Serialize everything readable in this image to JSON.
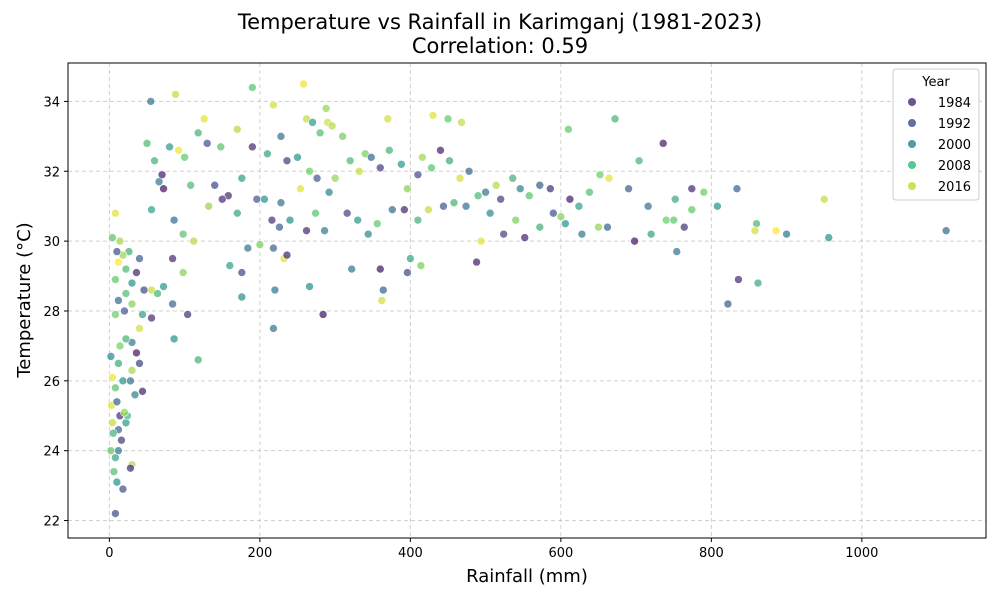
{
  "chart_data": {
    "type": "scatter",
    "title": "Temperature vs Rainfall in Karimganj (1981-2023)",
    "subtitle": "Correlation: 0.59",
    "xlabel": "Rainfall (mm)",
    "ylabel": "Temperature (°C)",
    "xlim": [
      -55,
      1165
    ],
    "ylim": [
      21.5,
      35.1
    ],
    "xticks": [
      0,
      200,
      400,
      600,
      800,
      1000
    ],
    "yticks": [
      22,
      24,
      26,
      28,
      30,
      32,
      34
    ],
    "grid": true,
    "legend": {
      "title": "Year",
      "placement": "top-right",
      "entries": [
        {
          "label": "1984",
          "color": "#482878"
        },
        {
          "label": "1992",
          "color": "#3e4a89"
        },
        {
          "label": "2000",
          "color": "#26828e"
        },
        {
          "label": "2008",
          "color": "#35b779"
        },
        {
          "label": "2016",
          "color": "#b5de2b"
        }
      ]
    },
    "colormap": [
      "#440154",
      "#3b528b",
      "#21918c",
      "#5ec962",
      "#fde725"
    ],
    "year_range": [
      1981,
      2023
    ],
    "points": [
      [
        8,
        22.2,
        1990
      ],
      [
        18,
        22.9,
        1991
      ],
      [
        10,
        23.1,
        2001
      ],
      [
        6,
        23.4,
        2010
      ],
      [
        30,
        23.6,
        2018
      ],
      [
        28,
        23.5,
        1986
      ],
      [
        8,
        23.8,
        2005
      ],
      [
        12,
        24.0,
        1997
      ],
      [
        2,
        24.0,
        2012
      ],
      [
        16,
        24.3,
        1988
      ],
      [
        12,
        24.6,
        1994
      ],
      [
        5,
        24.5,
        2007
      ],
      [
        22,
        24.8,
        2003
      ],
      [
        4,
        24.8,
        2019
      ],
      [
        14,
        25.0,
        1987
      ],
      [
        24,
        25.0,
        2009
      ],
      [
        20,
        25.1,
        2016
      ],
      [
        3,
        25.3,
        2021
      ],
      [
        10,
        25.4,
        1993
      ],
      [
        34,
        25.6,
        1999
      ],
      [
        44,
        25.7,
        1985
      ],
      [
        8,
        25.8,
        2011
      ],
      [
        18,
        26.0,
        2002
      ],
      [
        28,
        26.0,
        1996
      ],
      [
        4,
        26.1,
        2022
      ],
      [
        30,
        26.3,
        2017
      ],
      [
        40,
        26.5,
        1989
      ],
      [
        12,
        26.5,
        2006
      ],
      [
        2,
        26.7,
        2000
      ],
      [
        36,
        26.8,
        1983
      ],
      [
        14,
        27.0,
        2014
      ],
      [
        30,
        27.1,
        1998
      ],
      [
        22,
        27.2,
        2008
      ],
      [
        40,
        27.5,
        2020
      ],
      [
        8,
        27.9,
        2013
      ],
      [
        56,
        27.8,
        1986
      ],
      [
        20,
        28.0,
        1992
      ],
      [
        44,
        27.9,
        2004
      ],
      [
        30,
        28.2,
        2015
      ],
      [
        12,
        28.3,
        1995
      ],
      [
        22,
        28.5,
        2010
      ],
      [
        56,
        28.6,
        2019
      ],
      [
        46,
        28.6,
        1990
      ],
      [
        30,
        28.8,
        2002
      ],
      [
        8,
        28.9,
        2012
      ],
      [
        36,
        29.1,
        1985
      ],
      [
        22,
        29.2,
        2009
      ],
      [
        12,
        29.4,
        2023
      ],
      [
        40,
        29.5,
        1993
      ],
      [
        26,
        29.7,
        2007
      ],
      [
        18,
        29.6,
        2016
      ],
      [
        10,
        29.7,
        1991
      ],
      [
        14,
        30.0,
        2017
      ],
      [
        4,
        30.1,
        2011
      ],
      [
        8,
        30.8,
        2021
      ],
      [
        88,
        34.2,
        2019
      ],
      [
        55,
        34.0,
        1996
      ],
      [
        190,
        34.4,
        2011
      ],
      [
        258,
        34.5,
        2022
      ],
      [
        218,
        33.9,
        2020
      ],
      [
        126,
        33.5,
        2021
      ],
      [
        170,
        33.2,
        2018
      ],
      [
        118,
        33.1,
        2008
      ],
      [
        262,
        33.5,
        2019
      ],
      [
        288,
        33.8,
        2016
      ],
      [
        290,
        33.4,
        2020
      ],
      [
        296,
        33.3,
        2018
      ],
      [
        310,
        33.0,
        2014
      ],
      [
        370,
        33.5,
        2020
      ],
      [
        430,
        33.6,
        2021
      ],
      [
        450,
        33.5,
        2012
      ],
      [
        468,
        33.4,
        2019
      ],
      [
        610,
        33.2,
        2012
      ],
      [
        672,
        33.5,
        2008
      ],
      [
        228,
        33.0,
        1996
      ],
      [
        270,
        33.4,
        2003
      ],
      [
        280,
        33.1,
        2010
      ],
      [
        340,
        32.5,
        2014
      ],
      [
        236,
        32.3,
        1988
      ],
      [
        210,
        32.5,
        2005
      ],
      [
        250,
        32.4,
        2002
      ],
      [
        190,
        32.7,
        1986
      ],
      [
        148,
        32.7,
        2011
      ],
      [
        130,
        32.8,
        1991
      ],
      [
        100,
        32.4,
        2012
      ],
      [
        92,
        32.6,
        2022
      ],
      [
        50,
        32.8,
        2009
      ],
      [
        60,
        32.3,
        2007
      ],
      [
        80,
        32.7,
        2003
      ],
      [
        70,
        31.9,
        1984
      ],
      [
        66,
        31.7,
        1998
      ],
      [
        72,
        31.5,
        1983
      ],
      [
        108,
        31.6,
        2009
      ],
      [
        140,
        31.6,
        1990
      ],
      [
        158,
        31.3,
        1986
      ],
      [
        176,
        31.8,
        2004
      ],
      [
        196,
        31.2,
        1992
      ],
      [
        206,
        31.2,
        2002
      ],
      [
        228,
        31.1,
        1996
      ],
      [
        254,
        31.5,
        2021
      ],
      [
        266,
        32.0,
        2013
      ],
      [
        276,
        31.8,
        1992
      ],
      [
        292,
        31.4,
        1999
      ],
      [
        300,
        31.8,
        2016
      ],
      [
        320,
        32.3,
        2009
      ],
      [
        332,
        32.0,
        2019
      ],
      [
        348,
        32.4,
        1995
      ],
      [
        360,
        32.1,
        1988
      ],
      [
        372,
        32.6,
        2008
      ],
      [
        388,
        32.2,
        2003
      ],
      [
        396,
        31.5,
        2015
      ],
      [
        410,
        31.9,
        1990
      ],
      [
        416,
        32.4,
        2017
      ],
      [
        428,
        32.1,
        2011
      ],
      [
        440,
        32.6,
        1985
      ],
      [
        452,
        32.3,
        2006
      ],
      [
        466,
        31.8,
        2020
      ],
      [
        478,
        32.0,
        1994
      ],
      [
        490,
        31.3,
        2009
      ],
      [
        500,
        31.4,
        1997
      ],
      [
        514,
        31.6,
        2018
      ],
      [
        520,
        31.2,
        1989
      ],
      [
        536,
        31.8,
        2007
      ],
      [
        546,
        31.5,
        1999
      ],
      [
        558,
        31.3,
        2011
      ],
      [
        572,
        31.6,
        1993
      ],
      [
        586,
        31.5,
        1987
      ],
      [
        600,
        30.7,
        2015
      ],
      [
        612,
        31.2,
        1984
      ],
      [
        624,
        31.0,
        2004
      ],
      [
        638,
        31.4,
        2010
      ],
      [
        652,
        31.9,
        2013
      ],
      [
        664,
        31.8,
        2021
      ],
      [
        690,
        31.5,
        1993
      ],
      [
        704,
        32.3,
        2008
      ],
      [
        716,
        31.0,
        1996
      ],
      [
        736,
        32.8,
        1984
      ],
      [
        752,
        31.2,
        2006
      ],
      [
        774,
        31.5,
        1986
      ],
      [
        790,
        31.4,
        2013
      ],
      [
        808,
        31.0,
        2002
      ],
      [
        834,
        31.5,
        1994
      ],
      [
        56,
        30.9,
        2004
      ],
      [
        86,
        30.6,
        1995
      ],
      [
        98,
        30.2,
        2011
      ],
      [
        112,
        30.0,
        2018
      ],
      [
        132,
        31.0,
        2016
      ],
      [
        150,
        31.2,
        1986
      ],
      [
        170,
        30.8,
        2005
      ],
      [
        184,
        29.8,
        1997
      ],
      [
        200,
        29.9,
        2014
      ],
      [
        216,
        30.6,
        1987
      ],
      [
        226,
        30.4,
        1993
      ],
      [
        240,
        30.6,
        2001
      ],
      [
        262,
        30.3,
        1986
      ],
      [
        274,
        30.8,
        2011
      ],
      [
        286,
        30.3,
        1998
      ],
      [
        316,
        30.8,
        1989
      ],
      [
        330,
        30.6,
        2003
      ],
      [
        344,
        30.2,
        2000
      ],
      [
        356,
        30.5,
        2012
      ],
      [
        376,
        30.9,
        1995
      ],
      [
        392,
        30.9,
        1985
      ],
      [
        410,
        30.6,
        2007
      ],
      [
        424,
        30.9,
        2019
      ],
      [
        444,
        31.0,
        1992
      ],
      [
        458,
        31.1,
        2008
      ],
      [
        474,
        31.0,
        1996
      ],
      [
        488,
        29.4,
        1984
      ],
      [
        494,
        30.0,
        2021
      ],
      [
        506,
        30.8,
        2000
      ],
      [
        524,
        30.2,
        1989
      ],
      [
        540,
        30.6,
        2014
      ],
      [
        552,
        30.1,
        1985
      ],
      [
        572,
        30.4,
        2007
      ],
      [
        590,
        30.8,
        1991
      ],
      [
        606,
        30.5,
        2002
      ],
      [
        628,
        30.2,
        1998
      ],
      [
        650,
        30.4,
        2016
      ],
      [
        662,
        30.4,
        1994
      ],
      [
        698,
        30.0,
        1983
      ],
      [
        720,
        30.2,
        2005
      ],
      [
        740,
        30.6,
        2013
      ],
      [
        764,
        30.4,
        1987
      ],
      [
        774,
        30.9,
        2012
      ],
      [
        860,
        30.5,
        2009
      ],
      [
        858,
        30.3,
        2020
      ],
      [
        886,
        30.3,
        2023
      ],
      [
        900,
        30.2,
        1997
      ],
      [
        950,
        31.2,
        2019
      ],
      [
        956,
        30.1,
        2002
      ],
      [
        1112,
        30.3,
        1995
      ],
      [
        160,
        29.3,
        2004
      ],
      [
        176,
        29.1,
        1990
      ],
      [
        218,
        29.8,
        1994
      ],
      [
        232,
        29.5,
        2021
      ],
      [
        236,
        29.6,
        1985
      ],
      [
        322,
        29.2,
        1997
      ],
      [
        360,
        29.2,
        1983
      ],
      [
        396,
        29.1,
        1990
      ],
      [
        400,
        29.5,
        2005
      ],
      [
        414,
        29.3,
        2014
      ],
      [
        84,
        29.5,
        1986
      ],
      [
        98,
        29.1,
        2015
      ],
      [
        176,
        28.4,
        2001
      ],
      [
        220,
        28.6,
        1997
      ],
      [
        266,
        28.7,
        2001
      ],
      [
        364,
        28.6,
        1994
      ],
      [
        362,
        28.3,
        2020
      ],
      [
        84,
        28.2,
        1994
      ],
      [
        64,
        28.5,
        2008
      ],
      [
        72,
        28.7,
        2003
      ],
      [
        104,
        27.9,
        1987
      ],
      [
        218,
        27.5,
        1996
      ],
      [
        284,
        27.9,
        1983
      ],
      [
        86,
        27.2,
        2002
      ],
      [
        118,
        26.6,
        2008
      ],
      [
        822,
        28.2,
        1992
      ],
      [
        836,
        28.9,
        1986
      ],
      [
        862,
        28.8,
        2006
      ],
      [
        754,
        29.7,
        1996
      ],
      [
        750,
        30.6,
        2012
      ]
    ]
  }
}
